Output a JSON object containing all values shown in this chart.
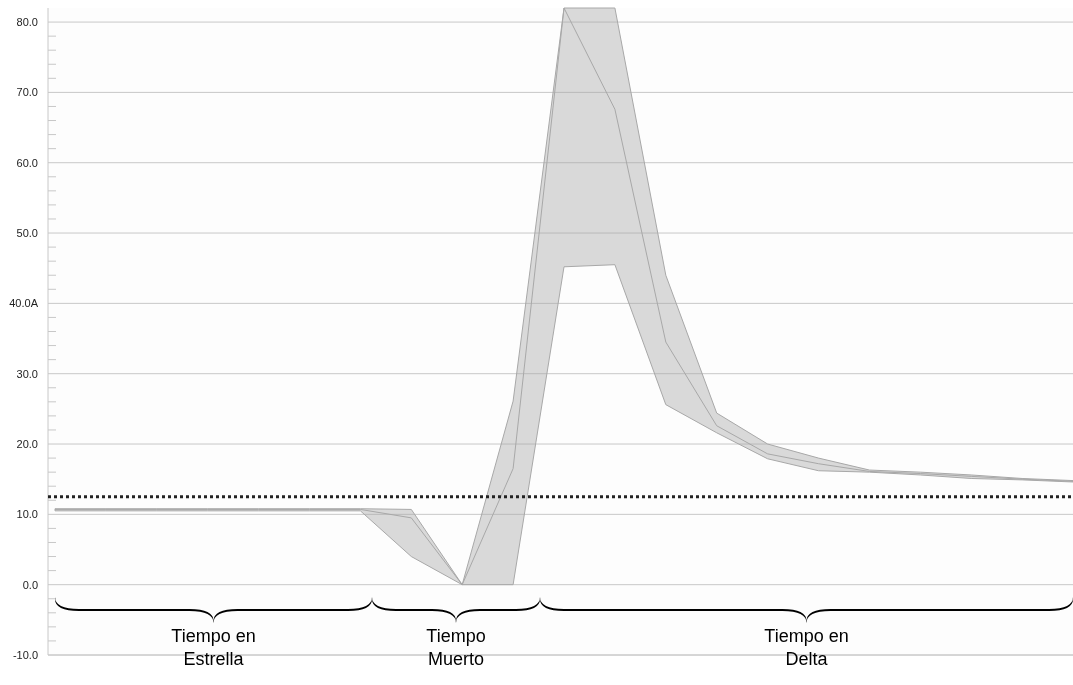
{
  "chart_data": {
    "type": "line",
    "categories": [
      null,
      null,
      null,
      null,
      null,
      null,
      null,
      null,
      null,
      null,
      null,
      null,
      null,
      null,
      null,
      null,
      null,
      null,
      null,
      null,
      null
    ],
    "series": [
      {
        "color": "#a8a8a8",
        "values": [
          10.7,
          10.7,
          10.7,
          10.7,
          10.7,
          10.7,
          10.7,
          9.5,
          0,
          16.5,
          82,
          67.6,
          34.5,
          22.6,
          18.6,
          17.2,
          16.1,
          15.8,
          15.4,
          15.0,
          14.7
        ],
        "lower": [
          10.5,
          10.5,
          10.5,
          10.5,
          10.5,
          10.5,
          10.5,
          4.0,
          0,
          0,
          45.2,
          45.5,
          25.6,
          21.6,
          17.9,
          16.2,
          16.0,
          15.6,
          15.1,
          14.9,
          14.6
        ],
        "upper": [
          10.8,
          10.8,
          10.8,
          10.8,
          10.8,
          10.8,
          10.8,
          10.7,
          0,
          26.1,
          82,
          82,
          44.0,
          24.4,
          20.0,
          18.0,
          16.3,
          16.0,
          15.6,
          15.1,
          14.8
        ]
      }
    ],
    "ylim": [
      -10,
      82
    ],
    "yticks": [
      {
        "value": -10,
        "label": "-10.0"
      },
      {
        "value": 0,
        "label": "0.0"
      },
      {
        "value": 10,
        "label": "10.0"
      },
      {
        "value": 20,
        "label": "20.0"
      },
      {
        "value": 30,
        "label": "30.0"
      },
      {
        "value": 40,
        "label": "40.0A"
      },
      {
        "value": 50,
        "label": "50.0"
      },
      {
        "value": 60,
        "label": "60.0"
      },
      {
        "value": 70,
        "label": "70.0"
      },
      {
        "value": 80,
        "label": "80.0"
      }
    ],
    "grid": "y",
    "ref_lines": [
      {
        "axis": "y",
        "value": 12.5,
        "color": "#222222",
        "line_style": "dotted"
      }
    ],
    "annotations": [
      "Tiempo en\nEstrella",
      "Tiempo\nMuerto",
      "Tiempo en\nDelta"
    ],
    "tick_labels": "y"
  }
}
